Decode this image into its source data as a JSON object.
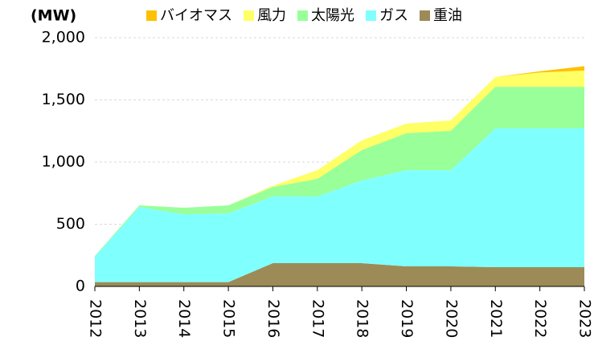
{
  "chart_data": {
    "type": "stacked_area",
    "y_label": "(MW)",
    "categories": [
      "2012",
      "2013",
      "2014",
      "2015",
      "2016",
      "2017",
      "2018",
      "2019",
      "2020",
      "2021",
      "2022",
      "2023"
    ],
    "series": [
      {
        "name": "重油",
        "color": "#9c8b56",
        "values": [
          35,
          35,
          35,
          35,
          187,
          187,
          187,
          161,
          161,
          155,
          155,
          155
        ]
      },
      {
        "name": "ガス",
        "color": "#80ffff",
        "values": [
          205,
          604,
          545,
          552,
          536,
          536,
          665,
          774,
          774,
          1116,
          1116,
          1116
        ]
      },
      {
        "name": "太陽光",
        "color": "#99ff99",
        "values": [
          5,
          13,
          52,
          65,
          77,
          142,
          245,
          297,
          317,
          335,
          335,
          335
        ]
      },
      {
        "name": "風力",
        "color": "#ffff66",
        "values": [
          0,
          0,
          0,
          0,
          10,
          70,
          77,
          78,
          83,
          78,
          114,
          130
        ]
      },
      {
        "name": "バイオマス",
        "color": "#ffc000",
        "values": [
          0,
          0,
          0,
          0,
          0,
          0,
          0,
          0,
          0,
          0,
          10,
          35
        ]
      }
    ],
    "ylim": [
      0,
      2000
    ],
    "yticks": [
      0,
      500,
      {
        "value": 1000,
        "label": "1,000"
      },
      {
        "value": 1500,
        "label": "1,500"
      },
      {
        "value": 2000,
        "label": "2,000"
      }
    ],
    "grid": true
  }
}
